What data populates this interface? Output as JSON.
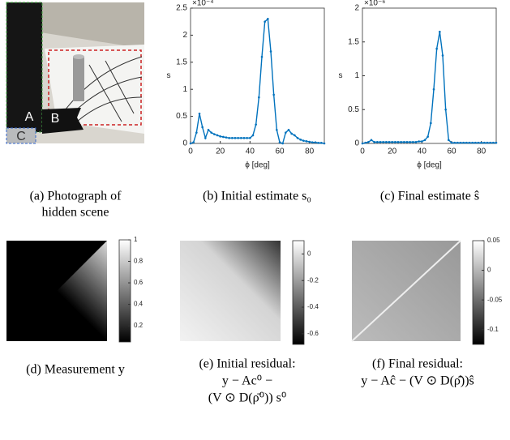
{
  "panel_a": {
    "caption": [
      "(a) Photograph of",
      "hidden scene"
    ],
    "labels": [
      "A",
      "B",
      "C"
    ]
  },
  "chart_data": [
    {
      "type": "line",
      "y_exponent": "×10⁻⁴",
      "xlabel": "ϕ [deg]",
      "ylabel": "s",
      "color": "#0072bd",
      "caption": [
        "(b) Initial estimate s₀"
      ],
      "xlim": [
        0,
        90
      ],
      "xticks": [
        0,
        20,
        40,
        60,
        80
      ],
      "ylim": [
        0,
        2.5
      ],
      "yticks": [
        0,
        0.5,
        1,
        1.5,
        2,
        2.5
      ],
      "x": [
        0,
        2,
        4,
        6,
        8,
        10,
        12,
        14,
        16,
        18,
        20,
        22,
        24,
        26,
        28,
        30,
        32,
        34,
        36,
        38,
        40,
        42,
        44,
        46,
        48,
        50,
        52,
        54,
        56,
        58,
        60,
        62,
        64,
        66,
        68,
        70,
        72,
        74,
        76,
        78,
        80,
        82,
        84,
        86,
        88,
        90
      ],
      "values": [
        0,
        0.02,
        0.2,
        0.55,
        0.3,
        0.1,
        0.25,
        0.2,
        0.17,
        0.15,
        0.13,
        0.12,
        0.11,
        0.1,
        0.1,
        0.1,
        0.1,
        0.1,
        0.1,
        0.1,
        0.1,
        0.15,
        0.35,
        0.85,
        1.6,
        2.25,
        2.3,
        1.7,
        0.9,
        0.25,
        0.02,
        0,
        0.2,
        0.25,
        0.18,
        0.15,
        0.1,
        0.07,
        0.05,
        0.04,
        0.03,
        0.02,
        0.02,
        0.01,
        0.01,
        0
      ]
    },
    {
      "type": "line",
      "y_exponent": "×10⁻⁶",
      "xlabel": "ϕ [deg]",
      "ylabel": "s",
      "color": "#0072bd",
      "caption": [
        "(c) Final estimate ŝ"
      ],
      "xlim": [
        0,
        90
      ],
      "xticks": [
        0,
        20,
        40,
        60,
        80
      ],
      "ylim": [
        0,
        2
      ],
      "yticks": [
        0,
        0.5,
        1,
        1.5,
        2
      ],
      "x": [
        0,
        2,
        4,
        6,
        8,
        10,
        12,
        14,
        16,
        18,
        20,
        22,
        24,
        26,
        28,
        30,
        32,
        34,
        36,
        38,
        40,
        42,
        44,
        46,
        48,
        50,
        52,
        54,
        56,
        58,
        60,
        62,
        64,
        66,
        68,
        70,
        72,
        74,
        76,
        78,
        80,
        82,
        84,
        86,
        88,
        90
      ],
      "values": [
        0,
        0.01,
        0.02,
        0.05,
        0.02,
        0.02,
        0.02,
        0.02,
        0.02,
        0.02,
        0.02,
        0.02,
        0.02,
        0.02,
        0.02,
        0.02,
        0.02,
        0.02,
        0.02,
        0.03,
        0.03,
        0.05,
        0.1,
        0.3,
        0.8,
        1.4,
        1.65,
        1.3,
        0.5,
        0.05,
        0.01,
        0.01,
        0.01,
        0.01,
        0.01,
        0.01,
        0.01,
        0.01,
        0.01,
        0.01,
        0.01,
        0.01,
        0.01,
        0.01,
        0.01,
        0.01
      ]
    }
  ],
  "heatmaps": [
    {
      "caption": [
        "(d) Measurement y"
      ],
      "colorbar_lim": [
        0.05,
        1
      ],
      "colorbar_ticks": [
        0.2,
        0.4,
        0.6,
        0.8,
        1
      ]
    },
    {
      "caption": [
        "(e) Initial residual:",
        "y − Ac⁰ −",
        "(V ⊙ D(ρ̄⁰)) s⁰"
      ],
      "colorbar_lim": [
        -0.68,
        0.1
      ],
      "colorbar_ticks": [
        0,
        -0.2,
        -0.4,
        -0.6
      ]
    },
    {
      "caption": [
        "(f) Final residual:",
        "y − Aĉ − (V ⊙ D(ρ̄̂))ŝ"
      ],
      "colorbar_lim": [
        -0.125,
        0.05
      ],
      "colorbar_ticks": [
        0.05,
        0,
        -0.05,
        -0.1
      ]
    }
  ]
}
